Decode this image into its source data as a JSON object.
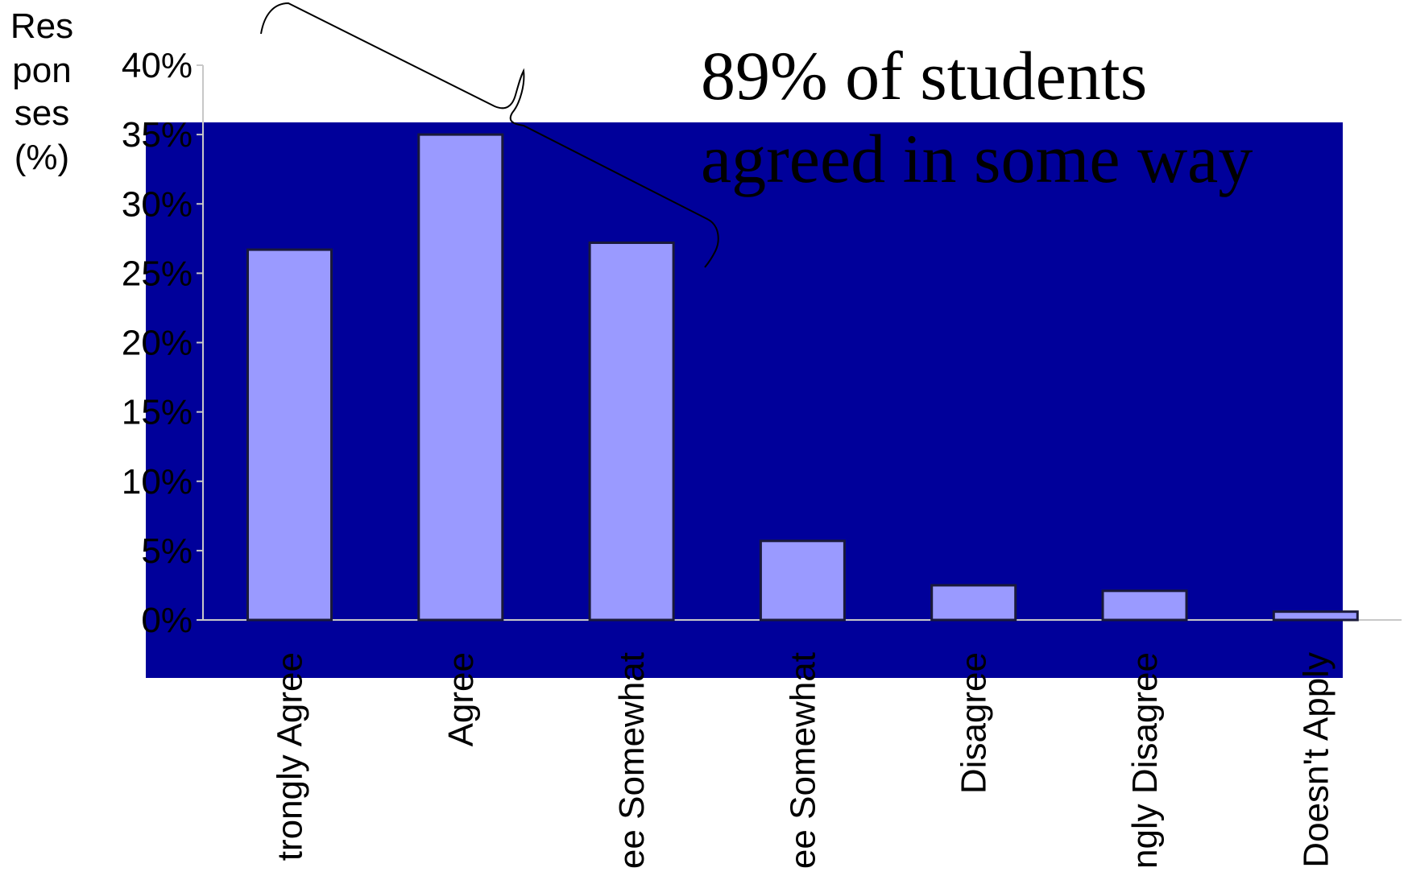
{
  "chart_data": {
    "type": "bar",
    "ylabel_lines": [
      "Res",
      "pon",
      "ses",
      "(%)"
    ],
    "categories": [
      "Strongly Agree",
      "Agree",
      "Agree Somewhat",
      "Disagree Somewhat",
      "Disagree",
      "Strongly Disagree",
      "Doesn't Apply"
    ],
    "visible_categories": [
      "trongly Agree",
      "Agree",
      "ee Somewhat",
      "ee Somewhat",
      "Disagree",
      "ngly Disagree",
      "Doesn't Apply"
    ],
    "values": [
      26.7,
      35.0,
      27.2,
      5.7,
      2.5,
      2.1,
      0.6
    ],
    "ylim": [
      0,
      40
    ],
    "yticks": [
      0,
      5,
      10,
      15,
      20,
      25,
      30,
      35,
      40
    ],
    "ytick_labels": [
      "0%",
      "5%",
      "10%",
      "15%",
      "20%",
      "25%",
      "30%",
      "35%",
      "40%"
    ],
    "grid": false,
    "annotation": {
      "lines": [
        "89% of students",
        "agreed in some way"
      ]
    },
    "colors": {
      "background_panel": "#00009a",
      "bar_fill": "#9a9aff",
      "bar_stroke": "#1a1a3a",
      "axis": "#c8c8c8",
      "brace": "#000000"
    }
  }
}
